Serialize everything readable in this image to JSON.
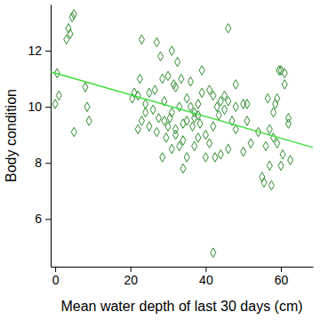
{
  "chart_data": {
    "type": "scatter",
    "x_label": "Mean water depth of last 30 days (cm)",
    "y_label": "Body condition",
    "xlim": [
      -1.2,
      68.5
    ],
    "ylim": [
      4.3,
      13.65
    ],
    "xticks": [
      0,
      20,
      40,
      60
    ],
    "yticks": [
      6,
      8,
      10,
      12
    ],
    "series": [
      {
        "type": "scatter",
        "marker": "diamond",
        "color": "#2e8b2e",
        "x": [
          0,
          0.5,
          1,
          3,
          3.5,
          4,
          4.5,
          5,
          5,
          8,
          8.5,
          9,
          20.5,
          21,
          22,
          22,
          22.5,
          23,
          23,
          24,
          24,
          25,
          25,
          26,
          26.5,
          27,
          27,
          27.5,
          28,
          28.5,
          28.5,
          29,
          29,
          29.5,
          30,
          30,
          30.5,
          31,
          31,
          31,
          31.5,
          32,
          32,
          32,
          32.5,
          33,
          33,
          33.5,
          34,
          34,
          34,
          35,
          35,
          35,
          36,
          36,
          36.5,
          37,
          37,
          37,
          38,
          38,
          38,
          38.5,
          39,
          39,
          40,
          40,
          41,
          41,
          42,
          42,
          42,
          42.5,
          43,
          43.5,
          44,
          44,
          45,
          45,
          46,
          46,
          46,
          47,
          48,
          48,
          48,
          50,
          50,
          51,
          51,
          52,
          54,
          55,
          55.5,
          56,
          56.5,
          57,
          57,
          57.5,
          58,
          58,
          58.5,
          59,
          59,
          59.5,
          60,
          60,
          60.5,
          61,
          61,
          62,
          62,
          62.5
        ],
        "values": [
          10.1,
          11.2,
          10.4,
          12.4,
          12.8,
          12.6,
          13.2,
          13.3,
          9.1,
          10.7,
          10.0,
          9.5,
          10.3,
          10.5,
          9.2,
          10.4,
          11.0,
          9.5,
          12.4,
          10.1,
          9.8,
          9.3,
          10.5,
          9.9,
          10.6,
          12.3,
          9.1,
          9.6,
          11.8,
          11.0,
          8.2,
          9.5,
          10.2,
          8.9,
          11.1,
          9.3,
          9.6,
          12.0,
          8.5,
          9.8,
          10.8,
          9.2,
          9.0,
          10.7,
          11.6,
          8.6,
          10.0,
          11.0,
          9.4,
          8.8,
          7.8,
          8.2,
          10.3,
          9.5,
          10.0,
          10.9,
          9.3,
          9.8,
          9.6,
          8.6,
          10.1,
          9.7,
          8.9,
          9.4,
          11.3,
          10.5,
          9.0,
          8.2,
          10.6,
          8.7,
          10.4,
          9.3,
          4.8,
          8.2,
          10.0,
          9.7,
          10.2,
          8.3,
          10.4,
          9.9,
          12.8,
          8.5,
          10.2,
          9.5,
          10.0,
          10.8,
          9.2,
          10.1,
          8.4,
          10.1,
          9.5,
          8.7,
          9.1,
          7.5,
          7.3,
          8.6,
          10.3,
          7.9,
          9.2,
          7.2,
          8.9,
          9.8,
          10.1,
          8.7,
          10.3,
          11.3,
          7.9,
          11.3,
          8.3,
          11.2,
          10.8,
          9.6,
          9.4,
          8.1
        ]
      },
      {
        "type": "line",
        "line_style": "solid",
        "color": "#33dd33",
        "x": [
          -1.2,
          68.5
        ],
        "values": [
          11.25,
          8.55
        ]
      }
    ]
  }
}
